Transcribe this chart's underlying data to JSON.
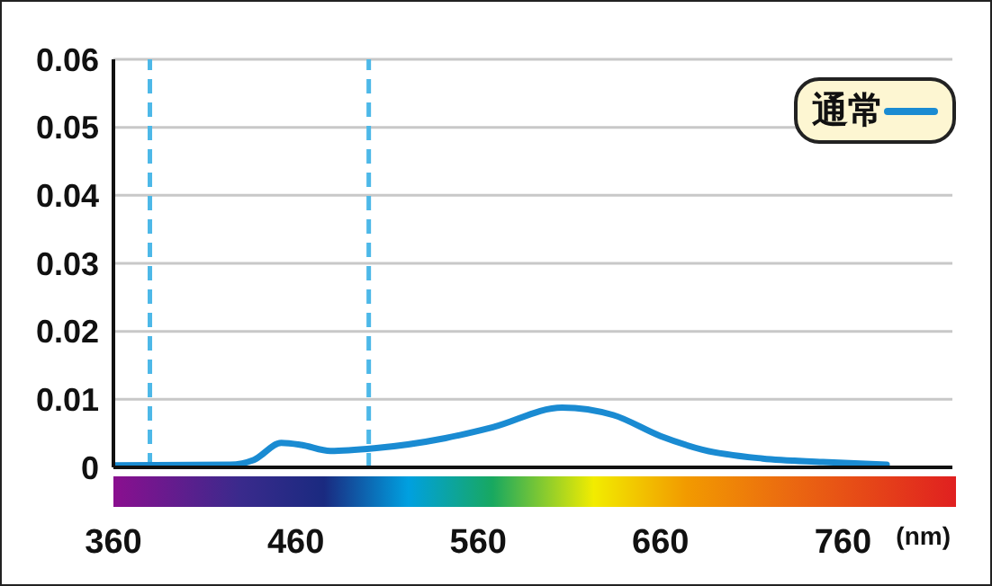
{
  "chart_data": {
    "type": "line",
    "xlabel": "(nm)",
    "x": [
      360,
      424,
      437,
      452,
      463,
      479,
      503,
      542,
      568,
      606,
      634,
      660,
      683,
      716,
      749,
      784
    ],
    "series": [
      {
        "name": "通常",
        "color": "#1a8bd2",
        "values": [
          0.0003,
          0.0004,
          0.0011,
          0.0036,
          0.0033,
          0.0024,
          0.0028,
          0.0043,
          0.0059,
          0.0088,
          0.0077,
          0.0046,
          0.0026,
          0.0013,
          0.0008,
          0.0004
        ]
      }
    ],
    "xlim": [
      360,
      820
    ],
    "xticks": [
      360,
      460,
      560,
      660,
      760
    ],
    "ylim": [
      0,
      0.06
    ],
    "yticks": [
      0,
      0.01,
      0.02,
      0.03,
      0.04,
      0.05,
      0.06
    ],
    "ref_lines": [
      {
        "axis": "x",
        "value": 380,
        "color": "#4db8e8",
        "line_style": "dashed"
      },
      {
        "axis": "x",
        "value": 500,
        "color": "#4db8e8",
        "line_style": "dashed"
      }
    ],
    "grid": "y",
    "legend": "top right",
    "marker": "none",
    "line_style": "solid"
  }
}
